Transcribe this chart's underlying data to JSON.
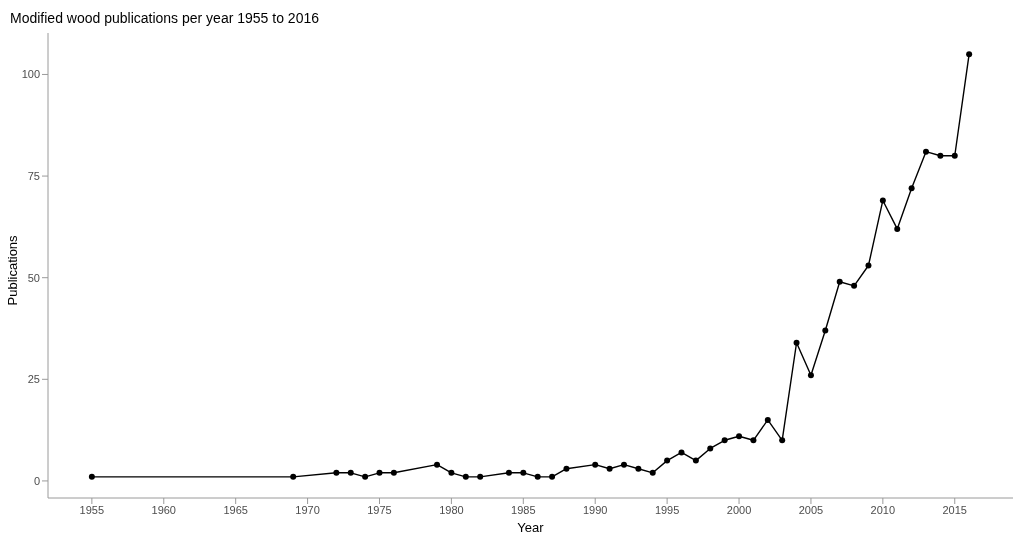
{
  "chart_data": {
    "type": "line",
    "title": "Modified wood publications per year 1955 to 2016",
    "xlabel": "Year",
    "ylabel": "Publications",
    "x": [
      1955,
      1969,
      1972,
      1973,
      1974,
      1975,
      1976,
      1979,
      1980,
      1981,
      1982,
      1984,
      1985,
      1986,
      1987,
      1988,
      1990,
      1991,
      1992,
      1993,
      1994,
      1995,
      1996,
      1997,
      1998,
      1999,
      2000,
      2001,
      2002,
      2003,
      2004,
      2005,
      2006,
      2007,
      2008,
      2009,
      2010,
      2011,
      2012,
      2013,
      2014,
      2015,
      2016
    ],
    "series": [
      {
        "color": "#000000",
        "values": [
          1,
          1,
          2,
          2,
          1,
          2,
          2,
          4,
          2,
          1,
          1,
          2,
          2,
          1,
          1,
          3,
          4,
          3,
          4,
          3,
          2,
          5,
          7,
          5,
          8,
          10,
          11,
          10,
          15,
          10,
          34,
          26,
          37,
          49,
          48,
          53,
          69,
          62,
          72,
          81,
          80,
          80,
          105
        ]
      }
    ],
    "xlim": [
      1951.95,
      2019.05
    ],
    "xticks": [
      1955,
      1960,
      1965,
      1970,
      1975,
      1980,
      1985,
      1990,
      1995,
      2000,
      2005,
      2010,
      2015
    ],
    "ylim": [
      -4.2,
      110.2
    ],
    "yticks": [
      0,
      25,
      50,
      75,
      100
    ],
    "grid": false,
    "legend": false,
    "marker": "circle",
    "line_style": "solid"
  }
}
